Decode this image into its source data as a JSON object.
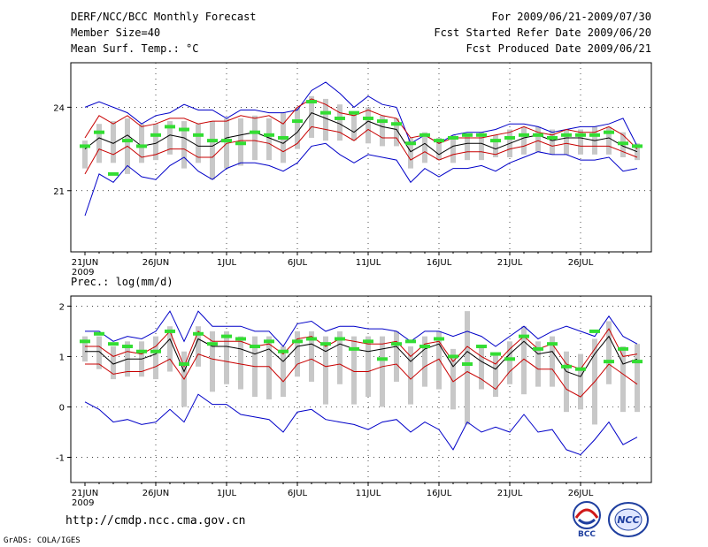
{
  "header": {
    "title_left": "DERF/NCC/BCC Monthly Forecast",
    "member_size": "Member Size=40",
    "variable_top": "Mean Surf. Temp.: °C",
    "period": "For 2009/06/21-2009/07/30",
    "fcst_started": "Fcst Started Refer Date 2009/06/20",
    "fcst_produced": "Fcst Produced Date 2009/06/21"
  },
  "footer": {
    "url": "http://cmdp.ncc.cma.gov.cn",
    "credit": "GrADS: COLA/IGES",
    "logo_bcc": "BCC",
    "logo_ncc": "NCC"
  },
  "colors": {
    "max_line": "#0000c8",
    "spread_line": "#c80000",
    "mean_line": "#000000",
    "box": "#c8c8c8",
    "obs_dash": "#33dd33"
  },
  "chart_data": [
    {
      "type": "line",
      "title": "Mean Surf. Temp.: °C",
      "xlabel": "",
      "ylabel": "°C",
      "ylim": [
        18.8,
        25.6
      ],
      "yticks": [
        21,
        24
      ],
      "grid": true,
      "x_start_label": "21JUN",
      "x_year_label": "2009",
      "xtick_labels": [
        "21JUN",
        "26JUN",
        "1JUL",
        "6JUL",
        "11JUL",
        "16JUL",
        "21JUL",
        "26JUL"
      ],
      "days": 40,
      "series": [
        {
          "name": "ensemble max",
          "values": [
            24.0,
            24.2,
            24.0,
            23.8,
            23.4,
            23.7,
            23.8,
            24.1,
            23.9,
            23.9,
            23.6,
            23.9,
            23.9,
            23.8,
            23.8,
            23.9,
            24.6,
            24.9,
            24.5,
            24.0,
            24.4,
            24.1,
            24.0,
            22.7,
            23.0,
            22.7,
            23.0,
            23.1,
            23.1,
            23.2,
            23.4,
            23.4,
            23.3,
            23.1,
            23.2,
            23.3,
            23.3,
            23.4,
            23.6,
            22.6
          ]
        },
        {
          "name": "upper spread",
          "values": [
            22.9,
            23.7,
            23.4,
            23.7,
            23.3,
            23.4,
            23.6,
            23.6,
            23.4,
            23.5,
            23.5,
            23.7,
            23.6,
            23.7,
            23.4,
            24.0,
            24.3,
            24.1,
            23.8,
            23.7,
            23.9,
            23.7,
            23.6,
            22.9,
            23.0,
            22.7,
            22.9,
            22.9,
            22.9,
            23.0,
            23.1,
            23.3,
            23.1,
            23.0,
            23.2,
            23.1,
            23.1,
            23.3,
            23.0,
            22.5
          ]
        },
        {
          "name": "ensemble mean",
          "values": [
            22.5,
            22.9,
            22.7,
            23.0,
            22.6,
            22.7,
            23.0,
            22.9,
            22.6,
            22.6,
            22.9,
            23.0,
            23.1,
            22.9,
            22.7,
            23.1,
            23.8,
            23.6,
            23.4,
            23.1,
            23.5,
            23.3,
            23.2,
            22.4,
            22.7,
            22.3,
            22.6,
            22.7,
            22.7,
            22.5,
            22.7,
            22.9,
            23.0,
            22.8,
            22.9,
            22.9,
            22.8,
            22.9,
            22.6,
            22.4
          ]
        },
        {
          "name": "lower spread",
          "values": [
            21.6,
            22.5,
            22.3,
            22.6,
            22.2,
            22.3,
            22.5,
            22.5,
            22.2,
            22.2,
            22.7,
            22.8,
            22.8,
            22.7,
            22.4,
            22.7,
            23.3,
            23.2,
            23.1,
            22.8,
            23.2,
            22.9,
            22.9,
            22.1,
            22.4,
            22.1,
            22.3,
            22.4,
            22.4,
            22.3,
            22.5,
            22.6,
            22.8,
            22.6,
            22.7,
            22.6,
            22.6,
            22.6,
            22.4,
            22.2
          ]
        },
        {
          "name": "ensemble min",
          "values": [
            20.1,
            21.6,
            21.3,
            21.9,
            21.5,
            21.4,
            21.9,
            22.2,
            21.7,
            21.4,
            21.8,
            22.0,
            22.0,
            21.9,
            21.7,
            22.0,
            22.6,
            22.7,
            22.3,
            22.0,
            22.3,
            22.2,
            22.1,
            21.3,
            21.8,
            21.5,
            21.8,
            21.8,
            21.9,
            21.7,
            22.0,
            22.2,
            22.4,
            22.3,
            22.3,
            22.1,
            22.1,
            22.2,
            21.7,
            21.8
          ]
        },
        {
          "name": "box upper",
          "values": [
            22.8,
            23.4,
            23.5,
            23.6,
            23.4,
            23.4,
            23.5,
            23.5,
            23.4,
            23.5,
            23.6,
            23.6,
            23.7,
            23.6,
            23.8,
            24.0,
            24.4,
            24.3,
            24.1,
            23.8,
            24.0,
            23.7,
            23.6,
            22.9,
            23.1,
            22.9,
            23.0,
            23.0,
            23.1,
            23.0,
            23.2,
            23.3,
            23.3,
            23.2,
            23.2,
            23.2,
            23.3,
            23.3,
            23.1,
            22.7
          ]
        },
        {
          "name": "box lower",
          "values": [
            21.8,
            22.0,
            22.0,
            21.6,
            22.0,
            22.1,
            22.3,
            21.8,
            22.0,
            21.4,
            21.8,
            21.9,
            22.1,
            22.1,
            22.0,
            22.5,
            22.9,
            22.8,
            22.8,
            22.8,
            22.7,
            22.6,
            22.6,
            21.8,
            22.0,
            22.1,
            22.0,
            22.1,
            22.1,
            22.2,
            22.2,
            22.3,
            22.4,
            22.3,
            22.3,
            22.3,
            22.3,
            22.3,
            22.2,
            22.1
          ]
        },
        {
          "name": "observed",
          "values": [
            22.6,
            23.1,
            21.6,
            22.8,
            22.6,
            23.0,
            23.3,
            23.2,
            23.0,
            22.8,
            22.8,
            22.7,
            23.1,
            23.0,
            22.9,
            23.5,
            24.2,
            23.8,
            23.6,
            23.8,
            23.6,
            23.5,
            23.4,
            22.7,
            23.0,
            22.8,
            22.9,
            23.0,
            23.0,
            22.8,
            22.9,
            23.0,
            23.0,
            22.9,
            23.0,
            23.0,
            23.0,
            23.1,
            22.7,
            22.6
          ]
        }
      ]
    },
    {
      "type": "line",
      "title": "Prec.: log(mm/d)",
      "xlabel": "",
      "ylabel": "log(mm/d)",
      "ylim": [
        -1.5,
        2.2
      ],
      "yticks": [
        -1,
        0,
        1,
        2
      ],
      "grid": true,
      "x_start_label": "21JUN",
      "x_year_label": "2009",
      "xtick_labels": [
        "21JUN",
        "26JUN",
        "1JUL",
        "6JUL",
        "11JUL",
        "16JUL",
        "21JUL",
        "26JUL"
      ],
      "days": 40,
      "series": [
        {
          "name": "ensemble max",
          "values": [
            1.5,
            1.5,
            1.3,
            1.4,
            1.35,
            1.5,
            1.9,
            1.3,
            1.9,
            1.6,
            1.6,
            1.6,
            1.5,
            1.5,
            1.2,
            1.65,
            1.7,
            1.5,
            1.6,
            1.6,
            1.55,
            1.55,
            1.5,
            1.3,
            1.5,
            1.5,
            1.4,
            1.5,
            1.4,
            1.2,
            1.4,
            1.6,
            1.35,
            1.5,
            1.6,
            1.5,
            1.4,
            1.8,
            1.4,
            1.25
          ]
        },
        {
          "name": "upper spread",
          "values": [
            1.2,
            1.2,
            1.0,
            1.1,
            1.05,
            1.2,
            1.5,
            0.8,
            1.5,
            1.3,
            1.3,
            1.3,
            1.2,
            1.25,
            1.05,
            1.35,
            1.4,
            1.2,
            1.35,
            1.3,
            1.25,
            1.25,
            1.3,
            1.0,
            1.25,
            1.3,
            0.9,
            1.2,
            1.0,
            0.85,
            1.15,
            1.4,
            1.15,
            1.25,
            0.85,
            0.75,
            1.15,
            1.55,
            1.0,
            1.05
          ]
        },
        {
          "name": "ensemble mean",
          "values": [
            1.1,
            1.1,
            0.85,
            0.95,
            0.95,
            1.05,
            1.35,
            0.7,
            1.35,
            1.2,
            1.2,
            1.15,
            1.05,
            1.15,
            0.9,
            1.2,
            1.25,
            1.1,
            1.25,
            1.15,
            1.1,
            1.15,
            1.2,
            0.9,
            1.15,
            1.25,
            0.8,
            1.1,
            0.9,
            0.75,
            1.05,
            1.3,
            1.05,
            1.1,
            0.7,
            0.6,
            1.05,
            1.4,
            0.85,
            0.95
          ]
        },
        {
          "name": "lower spread",
          "values": [
            0.85,
            0.85,
            0.65,
            0.7,
            0.7,
            0.8,
            0.95,
            0.55,
            1.05,
            0.95,
            0.9,
            0.85,
            0.8,
            0.8,
            0.5,
            0.85,
            0.95,
            0.8,
            0.85,
            0.7,
            0.7,
            0.8,
            0.85,
            0.55,
            0.8,
            0.95,
            0.5,
            0.7,
            0.55,
            0.35,
            0.7,
            0.95,
            0.75,
            0.75,
            0.35,
            0.2,
            0.5,
            0.85,
            0.65,
            0.45
          ]
        },
        {
          "name": "ensemble min",
          "values": [
            0.1,
            -0.05,
            -0.3,
            -0.25,
            -0.35,
            -0.3,
            -0.05,
            -0.3,
            0.25,
            0.05,
            0.05,
            -0.15,
            -0.2,
            -0.25,
            -0.5,
            -0.1,
            -0.05,
            -0.25,
            -0.3,
            -0.35,
            -0.45,
            -0.3,
            -0.25,
            -0.5,
            -0.3,
            -0.45,
            -0.85,
            -0.3,
            -0.5,
            -0.4,
            -0.5,
            -0.15,
            -0.5,
            -0.45,
            -0.85,
            -0.95,
            -0.65,
            -0.3,
            -0.75,
            -0.6
          ]
        },
        {
          "name": "box upper",
          "values": [
            1.4,
            1.4,
            1.2,
            1.3,
            1.3,
            1.4,
            1.6,
            1.1,
            1.6,
            1.5,
            1.5,
            1.4,
            1.4,
            1.4,
            1.2,
            1.5,
            1.5,
            1.4,
            1.5,
            1.4,
            1.4,
            1.4,
            1.5,
            1.2,
            1.4,
            1.5,
            1.15,
            1.9,
            1.2,
            1.05,
            1.3,
            1.6,
            1.3,
            1.4,
            1.1,
            1.05,
            1.35,
            1.7,
            1.2,
            1.25
          ]
        },
        {
          "name": "box lower",
          "values": [
            0.9,
            0.75,
            0.55,
            0.6,
            0.6,
            0.55,
            0.7,
            0.0,
            0.8,
            0.3,
            0.45,
            0.35,
            0.2,
            0.15,
            0.2,
            0.6,
            0.5,
            0.05,
            0.45,
            0.05,
            0.2,
            0.0,
            0.5,
            0.05,
            0.4,
            0.35,
            -0.05,
            -0.35,
            0.35,
            0.2,
            0.45,
            0.25,
            0.4,
            0.4,
            -0.1,
            -0.05,
            -0.35,
            0.45,
            -0.1,
            -0.1
          ]
        },
        {
          "name": "observed",
          "values": [
            1.3,
            1.45,
            1.25,
            1.2,
            1.1,
            1.1,
            1.5,
            0.85,
            1.45,
            1.25,
            1.4,
            1.35,
            1.2,
            1.3,
            1.1,
            1.3,
            1.35,
            1.25,
            1.35,
            1.15,
            1.3,
            0.95,
            1.25,
            1.3,
            1.2,
            1.35,
            1.0,
            0.85,
            1.2,
            1.05,
            0.95,
            1.4,
            1.15,
            1.25,
            0.8,
            0.75,
            1.5,
            0.9,
            1.15,
            0.9
          ]
        }
      ]
    }
  ]
}
